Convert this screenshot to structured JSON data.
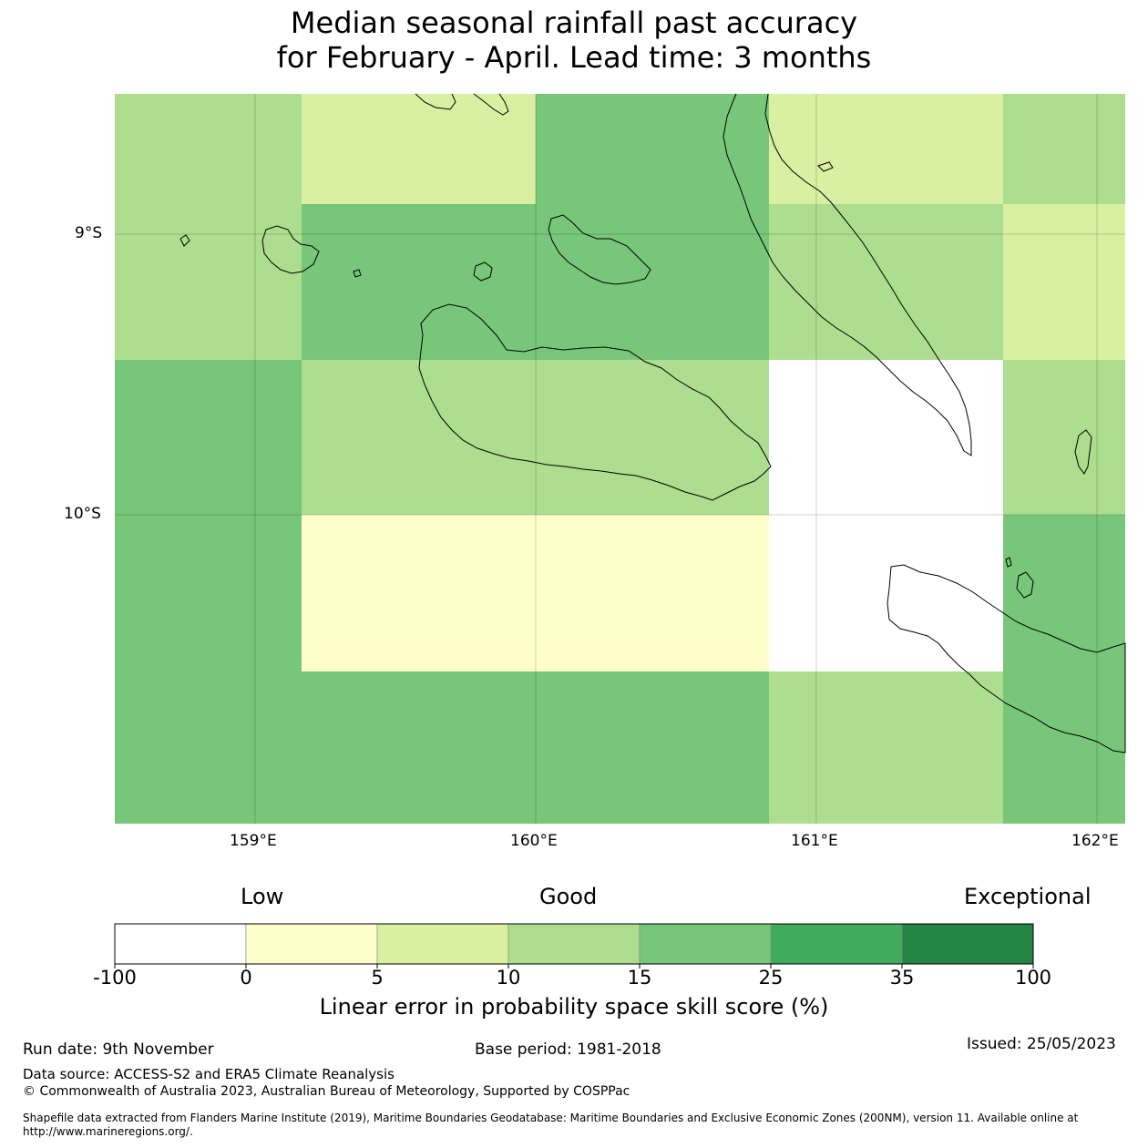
{
  "title": {
    "line1": "Median seasonal rainfall past accuracy",
    "line2": "for February - April. Lead time: 3 months"
  },
  "map": {
    "lat_labels": [
      "9°S",
      "10°S"
    ],
    "lon_labels": [
      "159°E",
      "160°E",
      "161°E",
      "162°E"
    ],
    "grid_skill_categories": [
      [
        3,
        2,
        4,
        2,
        3
      ],
      [
        3,
        4,
        4,
        3,
        2
      ],
      [
        4,
        3,
        3,
        0,
        3
      ],
      [
        4,
        1,
        1,
        0,
        4
      ],
      [
        4,
        4,
        4,
        3,
        4
      ]
    ]
  },
  "colorbar": {
    "head_low": "Low",
    "head_good": "Good",
    "head_exceptional": "Exceptional",
    "colors": [
      "#ffffff",
      "#ffffcc",
      "#d9f0a3",
      "#addd8e",
      "#78c679",
      "#41ab5d",
      "#238443"
    ],
    "ticks": [
      "-100",
      "0",
      "5",
      "10",
      "15",
      "25",
      "35",
      "100"
    ],
    "label": "Linear error in probability space skill score (%)"
  },
  "footer": {
    "run_date": "Run date: 9th November",
    "base_period": "Base period: 1981-2018",
    "issued": "Issued: 25/05/2023",
    "data_source": "Data source: ACCESS-S2 and ERA5 Climate Reanalysis",
    "copyright": "© Commonwealth of Australia 2023, Australian Bureau of Meteorology, Supported by COSPPac",
    "shapefile_line1": "Shapefile data extracted from Flanders Marine Institute (2019), Maritime Boundaries Geodatabase: Maritime Boundaries and Exclusive Economic Zones (200NM), version 11. Available online at",
    "shapefile_line2": "http://www.marineregions.org/."
  }
}
